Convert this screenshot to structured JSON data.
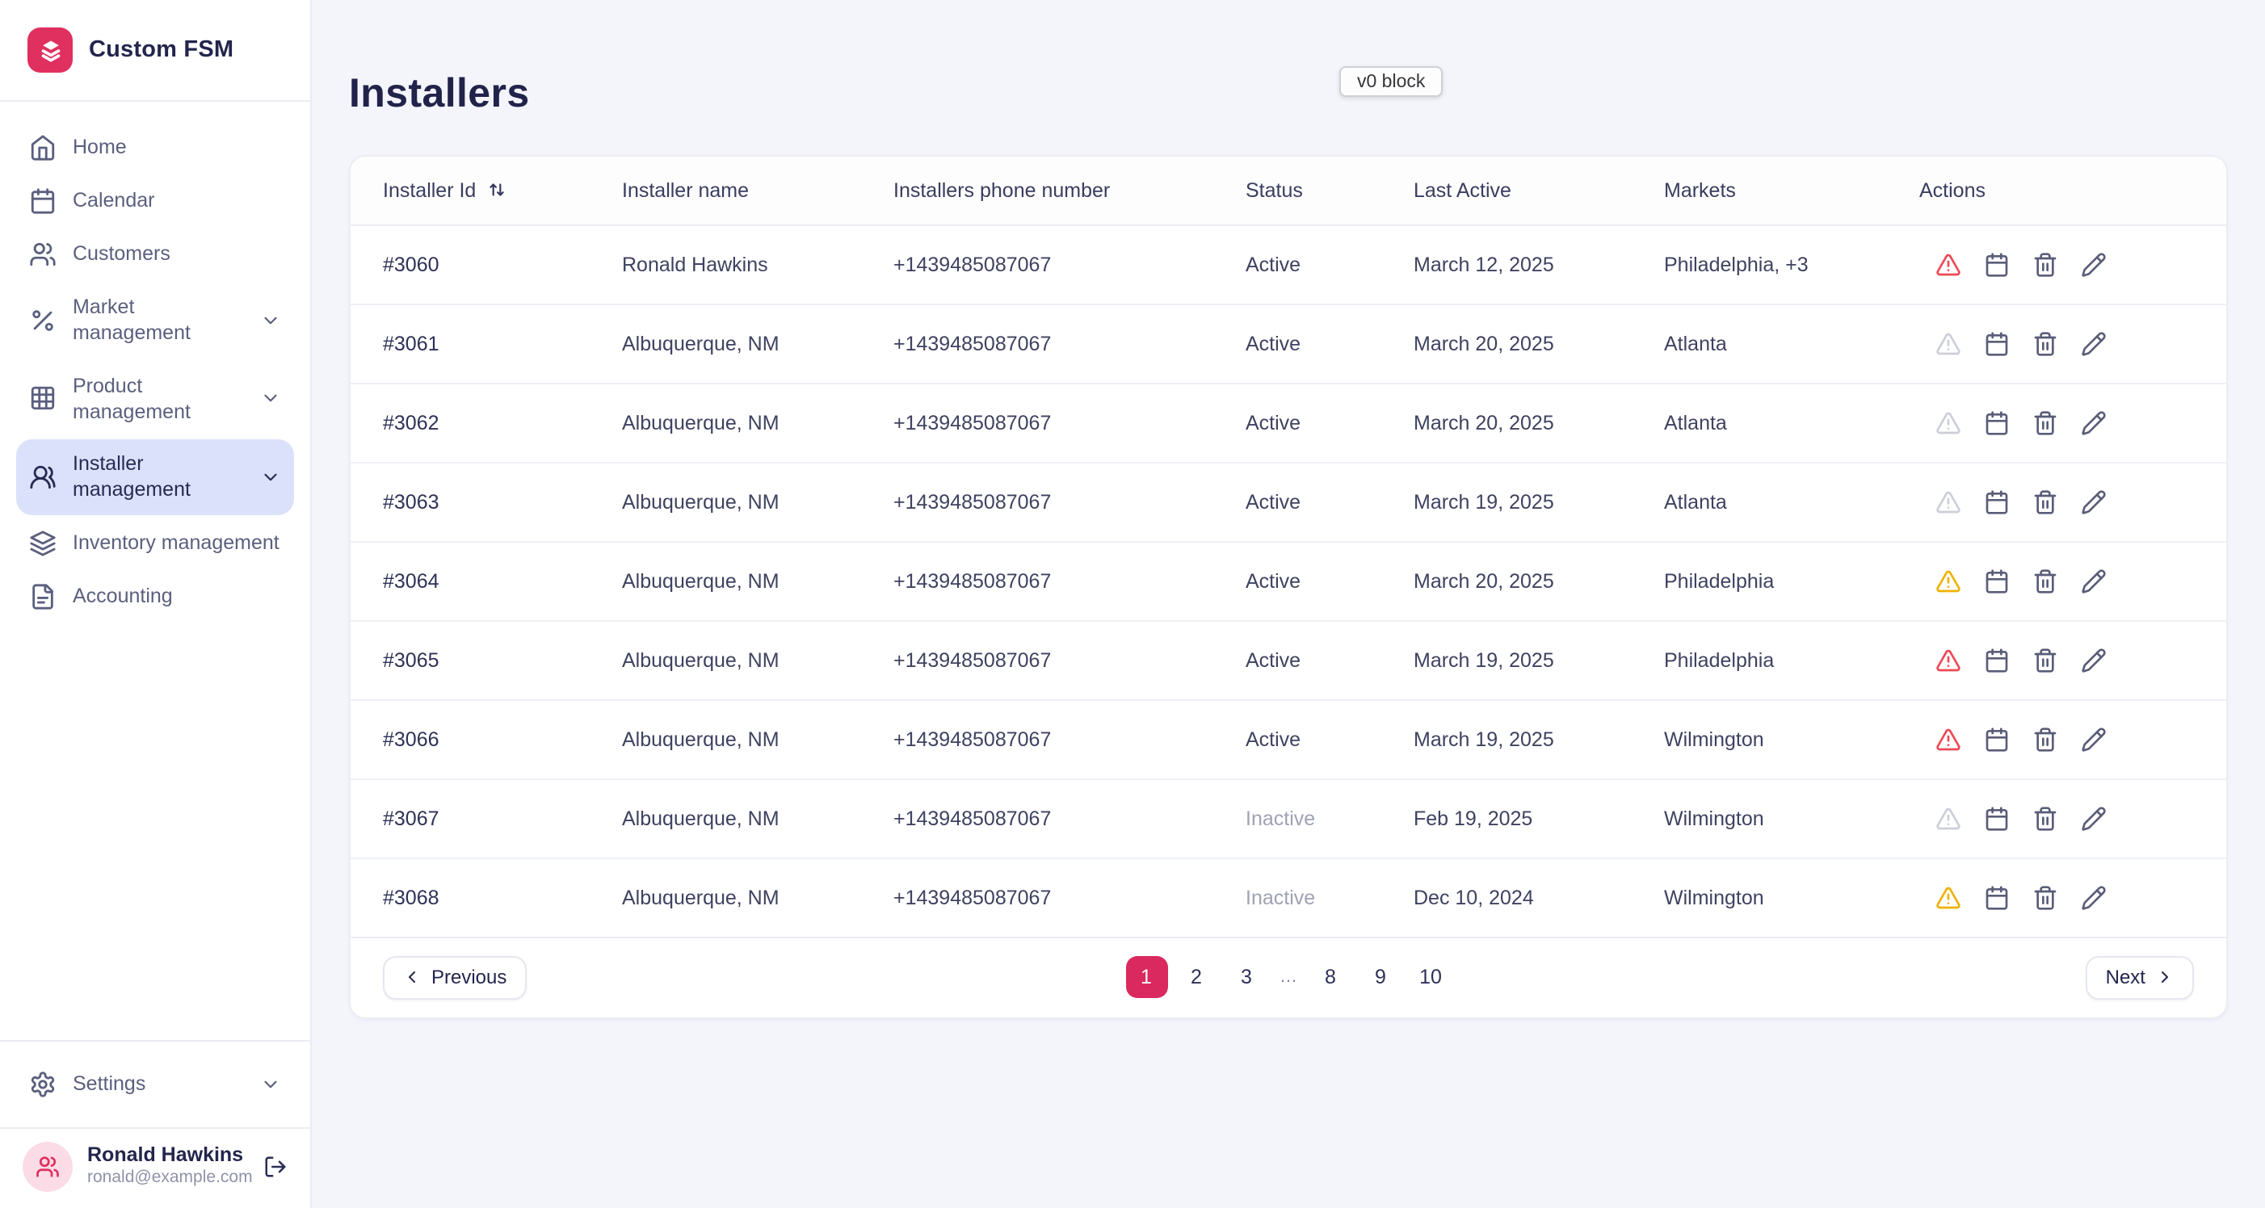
{
  "colors": {
    "accent_pink": "#e0305f",
    "active_nav_bg": "#dce1fb",
    "warning_red": "#ee4956",
    "warning_yellow": "#efb100",
    "warning_gray": "#ccced9"
  },
  "brand": {
    "name": "Custom FSM",
    "logo_icon": "layers-icon"
  },
  "sidebar": {
    "items": [
      {
        "label": "Home",
        "icon": "home-icon"
      },
      {
        "label": "Calendar",
        "icon": "calendar-icon"
      },
      {
        "label": "Customers",
        "icon": "users-icon"
      },
      {
        "label": "Market management",
        "icon": "percent-icon",
        "chevron": true
      },
      {
        "label": "Product management",
        "icon": "grid-icon",
        "chevron": true
      },
      {
        "label": "Installer management",
        "icon": "users-round-icon",
        "chevron": true,
        "active": true
      },
      {
        "label": "Inventory management",
        "icon": "layers-icon"
      },
      {
        "label": "Accounting",
        "icon": "file-text-icon"
      }
    ],
    "settings": {
      "label": "Settings",
      "icon": "gear-icon",
      "chevron": true
    },
    "user": {
      "name": "Ronald Hawkins",
      "email": "ronald@example.com",
      "avatar_icon": "users-icon",
      "logout_icon": "logout-icon"
    }
  },
  "page": {
    "title": "Installers",
    "tooltip": "v0 block"
  },
  "table": {
    "columns": [
      "Installer Id",
      "Installer name",
      "Installers phone number",
      "Status",
      "Last Active",
      "Markets",
      "Actions"
    ],
    "sort_column": "Installer Id",
    "action_icons": [
      "alert-triangle-icon",
      "calendar-icon",
      "trash-icon",
      "pencil-icon"
    ],
    "rows": [
      {
        "id": "#3060",
        "name": "Ronald Hawkins",
        "phone": "+1439485087067",
        "status": "Active",
        "last_active": "March 12, 2025",
        "markets": "Philadelphia, +3",
        "warning": "red"
      },
      {
        "id": "#3061",
        "name": "Albuquerque, NM",
        "phone": "+1439485087067",
        "status": "Active",
        "last_active": "March 20, 2025",
        "markets": "Atlanta",
        "warning": "gray"
      },
      {
        "id": "#3062",
        "name": "Albuquerque, NM",
        "phone": "+1439485087067",
        "status": "Active",
        "last_active": "March 20, 2025",
        "markets": "Atlanta",
        "warning": "gray"
      },
      {
        "id": "#3063",
        "name": "Albuquerque, NM",
        "phone": "+1439485087067",
        "status": "Active",
        "last_active": "March 19, 2025",
        "markets": "Atlanta",
        "warning": "gray"
      },
      {
        "id": "#3064",
        "name": "Albuquerque, NM",
        "phone": "+1439485087067",
        "status": "Active",
        "last_active": "March 20, 2025",
        "markets": "Philadelphia",
        "warning": "yellow"
      },
      {
        "id": "#3065",
        "name": "Albuquerque, NM",
        "phone": "+1439485087067",
        "status": "Active",
        "last_active": "March 19, 2025",
        "markets": "Philadelphia",
        "warning": "red"
      },
      {
        "id": "#3066",
        "name": "Albuquerque, NM",
        "phone": "+1439485087067",
        "status": "Active",
        "last_active": "March 19, 2025",
        "markets": "Wilmington",
        "warning": "red"
      },
      {
        "id": "#3067",
        "name": "Albuquerque, NM",
        "phone": "+1439485087067",
        "status": "Inactive",
        "last_active": "Feb 19, 2025",
        "markets": "Wilmington",
        "warning": "gray"
      },
      {
        "id": "#3068",
        "name": "Albuquerque, NM",
        "phone": "+1439485087067",
        "status": "Inactive",
        "last_active": "Dec 10, 2024",
        "markets": "Wilmington",
        "warning": "yellow"
      }
    ]
  },
  "pagination": {
    "previous_label": "Previous",
    "next_label": "Next",
    "pages": [
      "1",
      "2",
      "3",
      "…",
      "8",
      "9",
      "10"
    ],
    "current": "1"
  }
}
